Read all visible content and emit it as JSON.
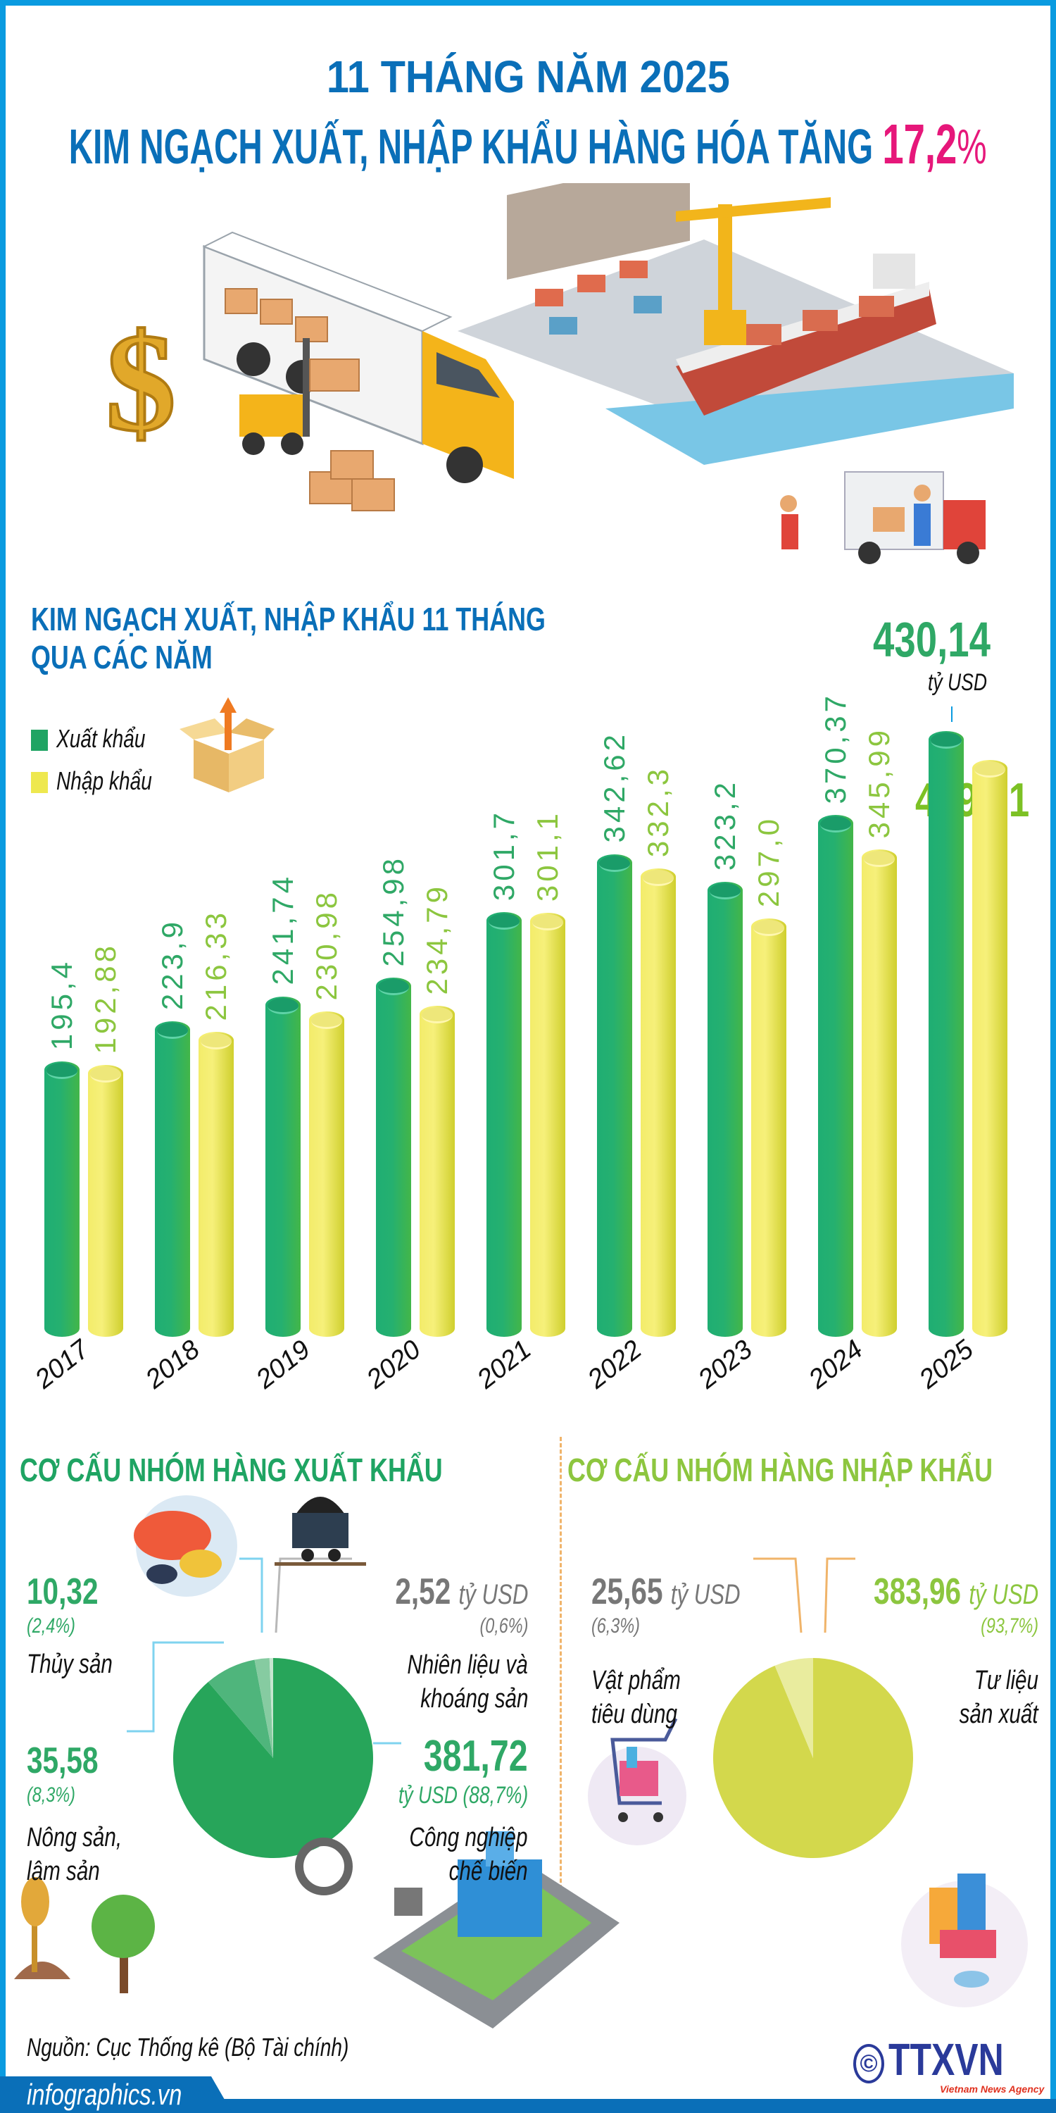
{
  "header": {
    "line1": "11 THÁNG NĂM 2025",
    "line2": "KIM NGẠCH XUẤT, NHẬP KHẨU HÀNG HÓA TĂNG ",
    "highlight_number": "17,2",
    "highlight_unit": "%"
  },
  "colors": {
    "frame": "#0a9be0",
    "title_blue": "#0a6fb8",
    "highlight": "#e6177a",
    "export_green": "#25b070",
    "import_yellow": "#f1ea62",
    "export_label": "#2fa866",
    "import_label": "#8cc63f"
  },
  "bar_section": {
    "title_line1": "KIM NGẠCH XUẤT, NHẬP KHẨU 11 THÁNG",
    "title_line2": "QUA CÁC NĂM",
    "legend": [
      "Xuất khẩu",
      "Nhập khẩu"
    ],
    "total_2025_value": "430,14",
    "total_2025_unit": "tỷ USD"
  },
  "chart_data": [
    {
      "type": "bar",
      "title": "KIM NGẠCH XUẤT, NHẬP KHẨU 11 THÁNG QUA CÁC NĂM",
      "unit": "tỷ USD",
      "categories": [
        "2017",
        "2018",
        "2019",
        "2020",
        "2021",
        "2022",
        "2023",
        "2024",
        "2025"
      ],
      "series": [
        {
          "name": "Xuất khẩu",
          "color": "#25b070",
          "values": [
            195.4,
            223.9,
            241.74,
            254.98,
            301.7,
            342.62,
            323.2,
            370.37,
            430.14
          ],
          "labels": [
            "195,4",
            "223,9",
            "241,74",
            "254,98",
            "301,7",
            "342,62",
            "323,2",
            "370,37",
            "430,14"
          ]
        },
        {
          "name": "Nhập khẩu",
          "color": "#f1ea62",
          "values": [
            192.88,
            216.33,
            230.98,
            234.79,
            301.1,
            332.3,
            297.0,
            345.99,
            409.61
          ],
          "labels": [
            "192,88",
            "216,33",
            "230,98",
            "234,79",
            "301,1",
            "332,3",
            "297,0",
            "345,99",
            "409,61"
          ]
        }
      ],
      "ylim": [
        0,
        440
      ],
      "grid": false,
      "legend_position": "top-left"
    },
    {
      "type": "pie",
      "title": "CƠ CẤU NHÓM HÀNG XUẤT KHẨU",
      "slices": [
        {
          "name": "Công nghiệp chế biến",
          "value": 381.72,
          "value_label": "381,72",
          "unit": "tỷ USD",
          "percent": "(88,7%)",
          "color": "#27a55a"
        },
        {
          "name_lines": [
            "Nông sản,",
            "lâm sản"
          ],
          "name": "Nông sản, lâm sản",
          "value": 35.58,
          "value_label": "35,58",
          "percent": "(8,3%)",
          "color": "#4fb57c"
        },
        {
          "name": "Thủy sản",
          "value": 10.32,
          "value_label": "10,32",
          "percent": "(2,4%)",
          "color": "#86cba1"
        },
        {
          "name_lines": [
            "Nhiên liệu và",
            "khoáng sản"
          ],
          "name": "Nhiên liệu và khoáng sản",
          "value": 2.52,
          "value_label": "2,52",
          "unit": "tỷ USD",
          "percent": "(0,6%)",
          "color": "#c6e6d0"
        }
      ]
    },
    {
      "type": "pie",
      "title": "CƠ CẤU NHÓM HÀNG NHẬP KHẨU",
      "slices": [
        {
          "name_lines": [
            "Tư liệu",
            "sản xuất"
          ],
          "name": "Tư liệu sản xuất",
          "value": 383.96,
          "value_label": "383,96",
          "unit": "tỷ USD",
          "percent": "(93,7%)",
          "color": "#d3d84c"
        },
        {
          "name_lines": [
            "Vật phẩm",
            "tiêu dùng"
          ],
          "name": "Vật phẩm tiêu dùng",
          "value": 25.65,
          "value_label": "25,65",
          "unit": "tỷ USD",
          "percent": "(6,3%)",
          "color": "#e9ec9e"
        }
      ]
    }
  ],
  "footer": {
    "source": "Nguồn: Cục Thống kê (Bộ Tài chính)",
    "site": "infographics.vn",
    "logo_text": "TTXVN",
    "logo_sub": "Vietnam News Agency",
    "copyright": "©"
  }
}
